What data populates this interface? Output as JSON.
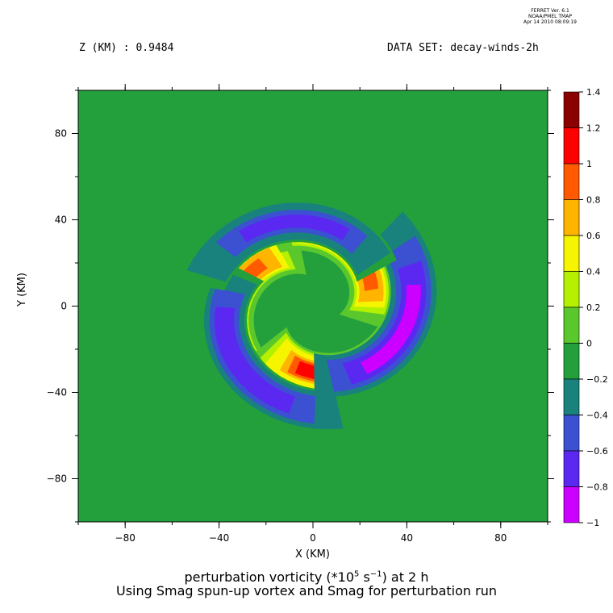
{
  "header": {
    "stamp_lines": [
      "FERRET Ver. 6.1",
      "NOAA/PMEL TMAP",
      "Apr 14 2010 08:09:19"
    ],
    "z_label": "Z (KM) : 0.9484",
    "dataset_label": "DATA SET: decay-winds-2h"
  },
  "chart_data": {
    "type": "heatmap",
    "title_main": "perturbation vorticity (*10",
    "title_exp": "5",
    "title_mid": " s",
    "title_exp2": "−1",
    "title_tail": ") at 2 h",
    "subtitle": "Using Smag spun-up vortex and Smag for perturbation run",
    "xlabel": "X (KM)",
    "ylabel": "Y (KM)",
    "xlim": [
      -100,
      100
    ],
    "ylim": [
      -100,
      100
    ],
    "x_ticks": [
      -80,
      -40,
      0,
      40,
      80
    ],
    "y_ticks": [
      80,
      40,
      0,
      -40,
      -80
    ],
    "tick_labels_x": [
      "−80",
      "−40",
      "0",
      "40",
      "80"
    ],
    "tick_labels_y": [
      "80",
      "40",
      "0",
      "−40",
      "−80"
    ],
    "colorbar": {
      "levels": [
        1.4,
        1.2,
        1,
        0.8,
        0.6,
        0.4,
        0.2,
        0,
        -0.2,
        -0.4,
        -0.6,
        -0.8,
        -1
      ],
      "level_labels": [
        "1.4",
        "1.2",
        "1",
        "0.8",
        "0.6",
        "0.4",
        "0.2",
        "0",
        "−0.2",
        "−0.4",
        "−0.6",
        "−0.8",
        "−1"
      ],
      "colors": [
        "#8b0000",
        "#ff0000",
        "#ff5a00",
        "#ffb400",
        "#f5f500",
        "#b4f000",
        "#5ac82d",
        "#23a03c",
        "#19827d",
        "#3c50d2",
        "#5a28f0",
        "#cc00ff"
      ]
    },
    "field": {
      "background_value": -0.1,
      "arms": [
        {
          "value": 0.9,
          "center_angle_deg": 170,
          "radius": 33
        },
        {
          "value": 1.1,
          "center_angle_deg": 290,
          "radius": 33
        },
        {
          "value": 0.9,
          "center_angle_deg": 50,
          "radius": 30
        },
        {
          "value": -0.7,
          "center_angle_deg": 220,
          "radius": 42
        },
        {
          "value": -0.8,
          "center_angle_deg": 340,
          "radius": 40
        },
        {
          "value": -0.6,
          "center_angle_deg": 100,
          "radius": 40
        }
      ]
    }
  }
}
